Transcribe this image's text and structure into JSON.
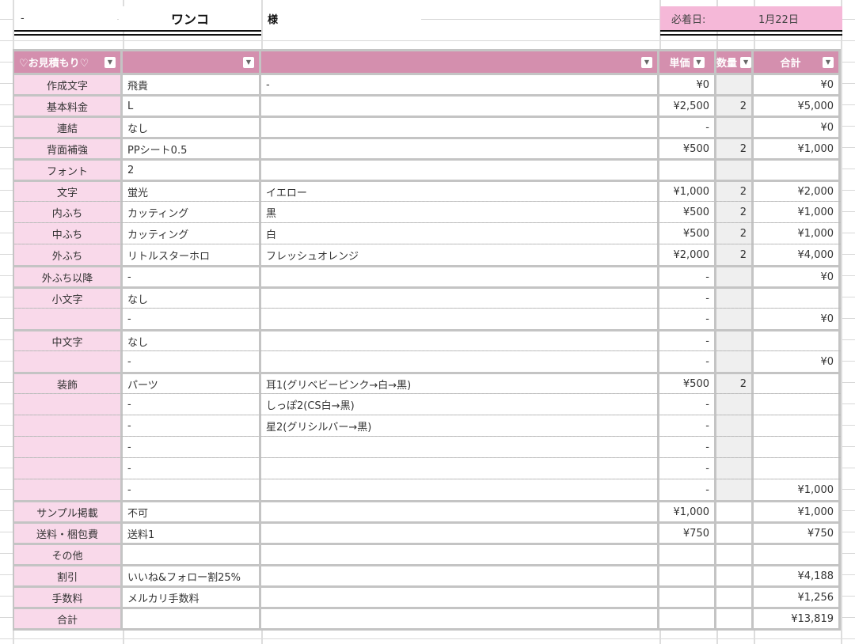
{
  "header": {
    "dash": "-",
    "customer": "ワンコ",
    "honorific": "様",
    "due_label": "必着日:",
    "due_date": "1月22日"
  },
  "colors": {
    "header_bg": "#d48fae",
    "label_bg": "#f9d9ea",
    "due_bg": "#f5b8d8"
  },
  "table": {
    "columns": [
      "♡お見積もり♡",
      "",
      "",
      "単価",
      "数量",
      "合計"
    ],
    "dropdown_icon": "filter-dropdown-icon",
    "sections": [
      {
        "rows": [
          [
            "作成文字",
            "飛貴",
            "-",
            "¥0",
            "",
            "¥0"
          ]
        ]
      },
      {
        "rows": [
          [
            "基本料金",
            "L",
            "",
            "¥2,500",
            "2",
            "¥5,000"
          ]
        ]
      },
      {
        "rows": [
          [
            "連結",
            "なし",
            "",
            "-",
            "",
            "¥0"
          ]
        ]
      },
      {
        "rows": [
          [
            "背面補強",
            "PPシート0.5",
            "",
            "¥500",
            "2",
            "¥1,000"
          ]
        ]
      },
      {
        "rows": [
          [
            "フォント",
            "2",
            "",
            "",
            "",
            ""
          ]
        ]
      },
      {
        "rows": [
          [
            "文字",
            "蛍光",
            "イエロー",
            "¥1,000",
            "2",
            "¥2,000"
          ],
          [
            "内ふち",
            "カッティング",
            "黒",
            "¥500",
            "2",
            "¥1,000"
          ],
          [
            "中ふち",
            "カッティング",
            "白",
            "¥500",
            "2",
            "¥1,000"
          ],
          [
            "外ふち",
            "リトルスターホロ",
            "フレッシュオレンジ",
            "¥2,000",
            "2",
            "¥4,000"
          ]
        ]
      },
      {
        "rows": [
          [
            "外ふち以降",
            "-",
            "",
            "-",
            "",
            "¥0"
          ]
        ]
      },
      {
        "rows": [
          [
            "小文字",
            "なし",
            "",
            "-",
            "",
            ""
          ],
          [
            "",
            "-",
            "",
            "-",
            "",
            "¥0"
          ]
        ]
      },
      {
        "rows": [
          [
            "中文字",
            "なし",
            "",
            "-",
            "",
            ""
          ],
          [
            "",
            "-",
            "",
            "-",
            "",
            "¥0"
          ]
        ]
      },
      {
        "rows": [
          [
            "装飾",
            "パーツ",
            "耳1(グリベビーピンク→白→黒)",
            "¥500",
            "2",
            ""
          ],
          [
            "",
            "-",
            "しっぽ2(CS白→黒)",
            "-",
            "",
            ""
          ],
          [
            "",
            "-",
            "星2(グリシルバー→黒)",
            "-",
            "",
            ""
          ],
          [
            "",
            "-",
            "",
            "-",
            "",
            ""
          ],
          [
            "",
            "-",
            "",
            "-",
            "",
            ""
          ],
          [
            "",
            "-",
            "",
            "-",
            "",
            "¥1,000"
          ]
        ]
      },
      {
        "qty_white": true,
        "rows": [
          [
            "サンプル掲載",
            "不可",
            "",
            "¥1,000",
            "",
            "¥1,000"
          ]
        ]
      },
      {
        "qty_white": true,
        "rows": [
          [
            "送料・梱包費",
            "送料1",
            "",
            "¥750",
            "",
            "¥750"
          ]
        ]
      },
      {
        "qty_white": true,
        "rows": [
          [
            "その他",
            "",
            "",
            "",
            "",
            ""
          ]
        ]
      },
      {
        "qty_white": true,
        "rows": [
          [
            "割引",
            "いいね&フォロー割25%",
            "",
            "",
            "",
            "¥4,188"
          ]
        ]
      },
      {
        "qty_white": true,
        "rows": [
          [
            "手数料",
            "メルカリ手数料",
            "",
            "",
            "",
            "¥1,256"
          ]
        ]
      },
      {
        "qty_white": true,
        "rows": [
          [
            "合計",
            "",
            "",
            "",
            "",
            "¥13,819"
          ]
        ]
      }
    ]
  }
}
